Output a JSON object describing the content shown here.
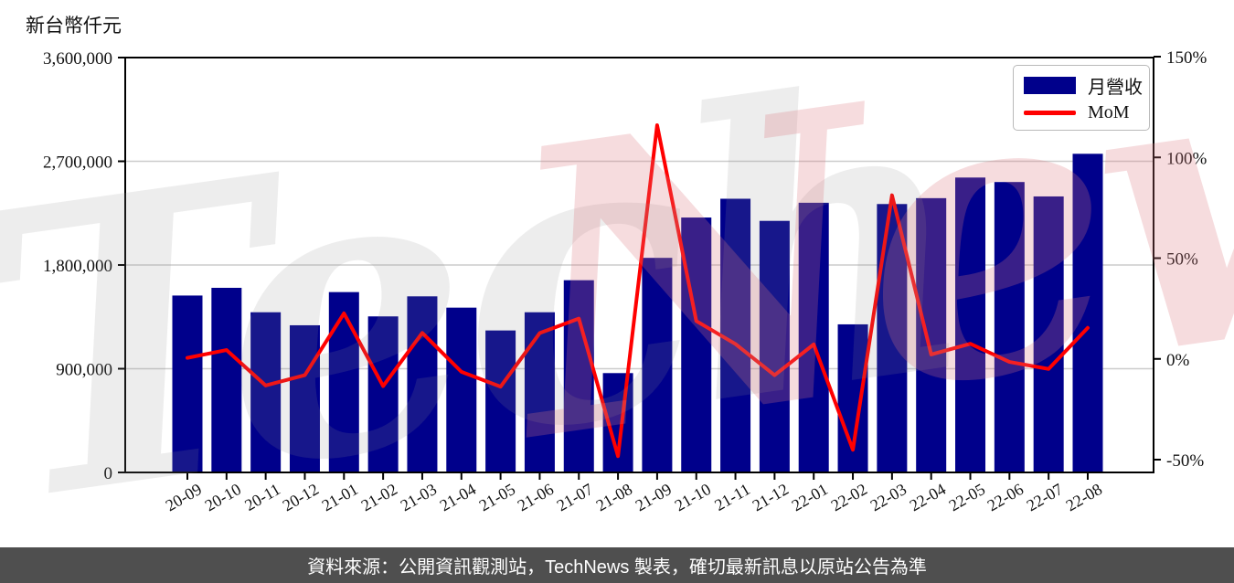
{
  "title": "新台幣仟元",
  "legend": {
    "revenue_label": "月營收",
    "mom_label": "MoM"
  },
  "watermark": {
    "part1": "Tech",
    "part2": "News"
  },
  "footer": {
    "text": "資料來源：公開資訊觀測站，TechNews 製表，確切最新訊息以原站公告為準"
  },
  "colors": {
    "bar": "#00008B",
    "line": "#FF0000",
    "grid": "#cccccc",
    "axis": "#000000",
    "tick_label": "#111111",
    "footer_bg": "#4f4f4f",
    "watermark_gray": "rgba(140,140,140,0.16)",
    "watermark_pink": "rgba(222,118,126,0.26)"
  },
  "chart_data": {
    "type": "bar+line",
    "title": "新台幣仟元",
    "categories": [
      "20-09",
      "20-10",
      "20-11",
      "20-12",
      "21-01",
      "21-02",
      "21-03",
      "21-04",
      "21-05",
      "21-06",
      "21-07",
      "21-08",
      "21-09",
      "21-10",
      "21-11",
      "21-12",
      "22-01",
      "22-02",
      "22-03",
      "22-04",
      "22-05",
      "22-06",
      "22-07",
      "22-08"
    ],
    "series": [
      {
        "name": "月營收",
        "type": "bar",
        "axis": "left",
        "unit": "新台幣仟元",
        "values": [
          1535000,
          1602000,
          1390000,
          1277000,
          1565000,
          1354000,
          1528000,
          1430000,
          1232000,
          1390000,
          1668000,
          862000,
          1862000,
          2212000,
          2375000,
          2183000,
          2340000,
          1285000,
          2329000,
          2380000,
          2559000,
          2520000,
          2395000,
          2765000
        ]
      },
      {
        "name": "MoM",
        "type": "line",
        "axis": "right",
        "unit": "%",
        "values": [
          0.5,
          4.4,
          -13.2,
          -8.1,
          22.6,
          -13.5,
          12.9,
          -6.4,
          -13.8,
          12.8,
          20.0,
          -48.3,
          116.0,
          18.8,
          7.4,
          -8.1,
          7.2,
          -45.1,
          81.2,
          2.2,
          7.5,
          -1.5,
          -5.0,
          15.4
        ]
      }
    ],
    "left_axis": {
      "label": "新台幣仟元",
      "range": [
        0,
        3600000
      ],
      "ticks": [
        0,
        900000,
        1800000,
        2700000,
        3600000
      ],
      "tick_labels": [
        "0",
        "900,000",
        "1,800,000",
        "2,700,000",
        "3,600,000"
      ]
    },
    "right_axis": {
      "label": "MoM",
      "ticks": [
        -50,
        0,
        50,
        100,
        150
      ],
      "tick_labels": [
        "-50%",
        "0%",
        "50%",
        "100%",
        "150%"
      ]
    },
    "grid": "horizontal",
    "legend_position": "upper right"
  }
}
